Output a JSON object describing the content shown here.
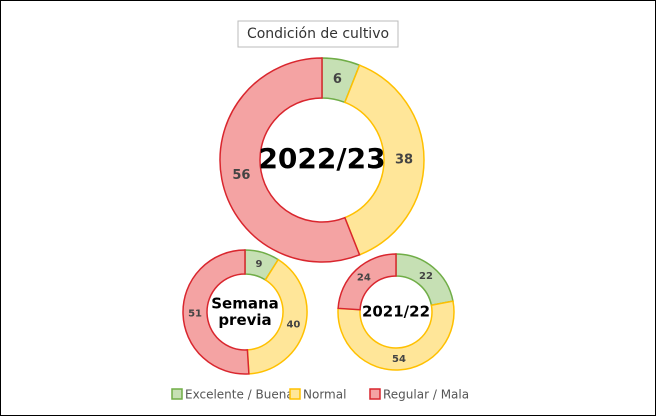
{
  "title": "Condición de cultivo",
  "chart_data": [
    {
      "type": "donut",
      "center_label": [
        "2022/23"
      ],
      "categories": [
        "Excelente / Buena",
        "Normal",
        "Regular / Mala"
      ],
      "values": [
        6,
        38,
        56
      ],
      "colors": [
        "#c6e0b4",
        "#ffe699",
        "#f4a3a3"
      ],
      "stroke_colors": [
        "#70ad47",
        "#ffc000",
        "#d9262e"
      ]
    },
    {
      "type": "donut",
      "center_label": [
        "Semana",
        "previa"
      ],
      "categories": [
        "Excelente / Buena",
        "Normal",
        "Regular / Mala"
      ],
      "values": [
        9,
        40,
        51
      ],
      "colors": [
        "#c6e0b4",
        "#ffe699",
        "#f4a3a3"
      ],
      "stroke_colors": [
        "#70ad47",
        "#ffc000",
        "#d9262e"
      ]
    },
    {
      "type": "donut",
      "center_label": [
        "2021/22"
      ],
      "categories": [
        "Excelente / Buena",
        "Normal",
        "Regular / Mala"
      ],
      "values": [
        22,
        54,
        24
      ],
      "colors": [
        "#c6e0b4",
        "#ffe699",
        "#f4a3a3"
      ],
      "stroke_colors": [
        "#70ad47",
        "#ffc000",
        "#d9262e"
      ]
    }
  ]
}
